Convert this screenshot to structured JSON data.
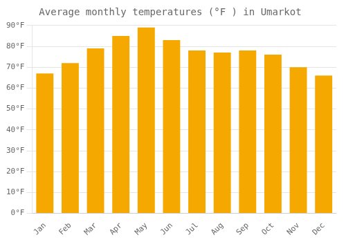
{
  "chart_data": {
    "type": "bar",
    "title": "Average monthly temperatures (°F ) in Umarkot",
    "categories": [
      "Jan",
      "Feb",
      "Mar",
      "Apr",
      "May",
      "Jun",
      "Jul",
      "Aug",
      "Sep",
      "Oct",
      "Nov",
      "Dec"
    ],
    "values": [
      67,
      72,
      79,
      85,
      89,
      83,
      78,
      77,
      78,
      76,
      70,
      66
    ],
    "color": "#F5A800",
    "ylim": [
      0,
      90
    ],
    "yticks": [
      {
        "value": 0,
        "label": "0°F"
      },
      {
        "value": 10,
        "label": "10°F"
      },
      {
        "value": 20,
        "label": "20°F"
      },
      {
        "value": 30,
        "label": "30°F"
      },
      {
        "value": 40,
        "label": "40°F"
      },
      {
        "value": 50,
        "label": "50°F"
      },
      {
        "value": 60,
        "label": "60°F"
      },
      {
        "value": 70,
        "label": "70°F"
      },
      {
        "value": 80,
        "label": "80°F"
      },
      {
        "value": 90,
        "label": "90°F"
      }
    ],
    "grid": true
  }
}
